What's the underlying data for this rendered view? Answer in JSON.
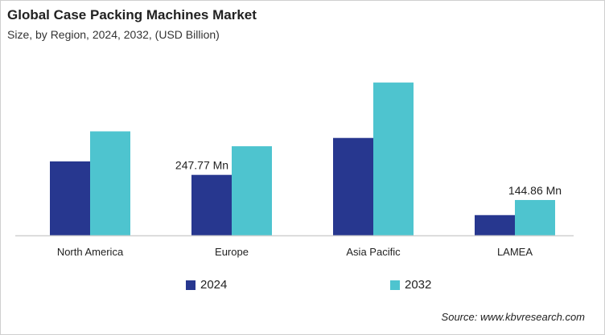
{
  "title": "Global Case Packing Machines Market",
  "subtitle": "Size, by Region, 2024, 2032, (USD Billion)",
  "source": "Source: www.kbvresearch.com",
  "chart_data": {
    "type": "bar",
    "categories": [
      "North America",
      "Europe",
      "Asia Pacific",
      "LAMEA"
    ],
    "series": [
      {
        "name": "2024",
        "color": "#27378F",
        "values": [
          303,
          247.77,
          399,
          83
        ]
      },
      {
        "name": "2032",
        "color": "#4EC4CF",
        "values": [
          426,
          365,
          626,
          144.86
        ]
      }
    ],
    "data_labels": [
      {
        "series": "2024",
        "category": "Europe",
        "text": "247.77 Mn"
      },
      {
        "series": "2032",
        "category": "LAMEA",
        "text": "144.86 Mn"
      }
    ],
    "ylim": [
      0,
      660
    ],
    "grid": false,
    "legend": "bottom"
  }
}
